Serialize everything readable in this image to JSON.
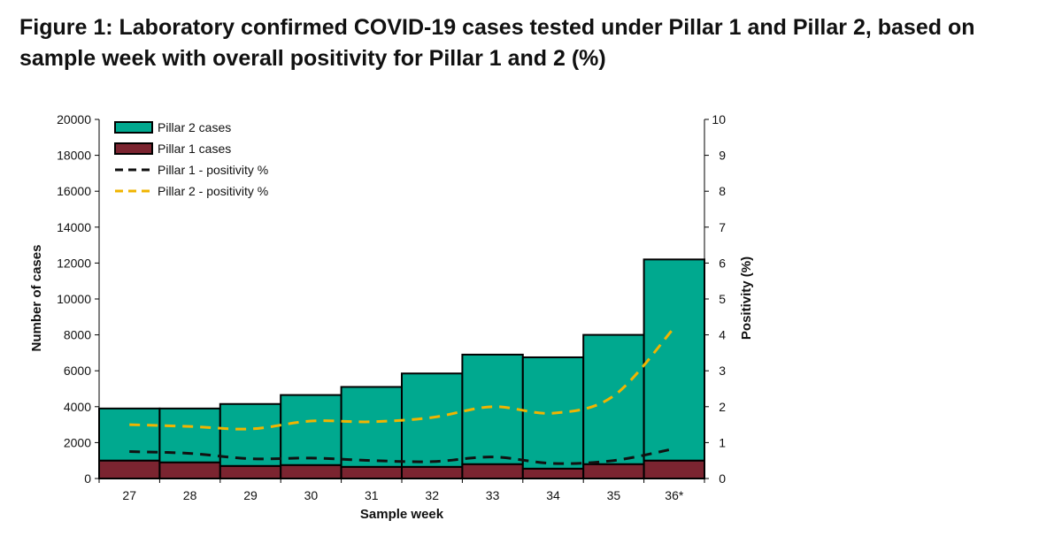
{
  "figure": {
    "title": "Figure 1: Laboratory confirmed COVID-19 cases tested under Pillar 1 and Pillar 2, based on sample week with overall positivity for Pillar 1 and 2 (%)"
  },
  "chart_data": {
    "type": "bar",
    "stacked": true,
    "categories": [
      "27",
      "28",
      "29",
      "30",
      "31",
      "32",
      "33",
      "34",
      "35",
      "36*"
    ],
    "series": [
      {
        "name": "Pillar 1 cases",
        "kind": "bar",
        "axis": "left",
        "color": "#7b2430",
        "values": [
          1000,
          900,
          700,
          750,
          650,
          650,
          800,
          550,
          800,
          1000
        ]
      },
      {
        "name": "Pillar 2 cases",
        "kind": "bar",
        "axis": "left",
        "color": "#00a98f",
        "values": [
          2900,
          3000,
          3450,
          3900,
          4450,
          5200,
          6100,
          6200,
          7200,
          11200
        ]
      },
      {
        "name": "Pillar 1 - positivity %",
        "kind": "line",
        "axis": "right",
        "color": "#111111",
        "dash": "dashed",
        "values": [
          0.75,
          0.7,
          0.55,
          0.57,
          0.5,
          0.47,
          0.6,
          0.42,
          0.5,
          0.83
        ]
      },
      {
        "name": "Pillar 2 - positivity %",
        "kind": "line",
        "axis": "right",
        "color": "#f0b400",
        "dash": "dashed",
        "values": [
          1.5,
          1.45,
          1.38,
          1.6,
          1.58,
          1.7,
          2.0,
          1.82,
          2.3,
          4.2
        ]
      }
    ],
    "legend_order": [
      "Pillar 2 cases",
      "Pillar 1 cases",
      "Pillar 1 - positivity %",
      "Pillar 2 - positivity %"
    ],
    "xlabel": "Sample week",
    "ylabel": "Number of cases",
    "y2label": "Positivity (%)",
    "ylim": [
      0,
      20000
    ],
    "yticks": [
      "0",
      "2000",
      "4000",
      "6000",
      "8000",
      "10000",
      "12000",
      "14000",
      "16000",
      "18000",
      "20000"
    ],
    "y2lim": [
      0,
      10
    ],
    "y2ticks": [
      "0",
      "1",
      "2",
      "3",
      "4",
      "5",
      "6",
      "7",
      "8",
      "9",
      "10"
    ],
    "legend_position": "top-left",
    "grid": false
  }
}
